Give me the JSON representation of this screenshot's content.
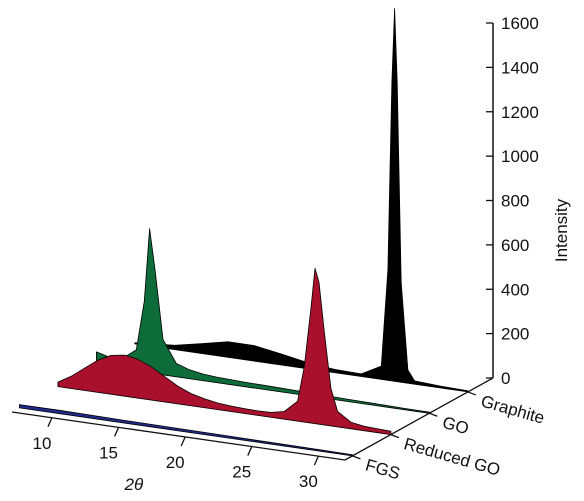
{
  "chart_data": {
    "type": "area",
    "view": "3d-waterfall",
    "x_axis": {
      "label": "2θ",
      "ticks": [
        10,
        15,
        20,
        25,
        30
      ],
      "range": [
        7,
        32
      ]
    },
    "y_axis": {
      "label": "Intensity",
      "ticks": [
        0,
        200,
        400,
        600,
        800,
        1000,
        1200,
        1400,
        1600
      ],
      "range": [
        0,
        1600
      ]
    },
    "depth_axis": {
      "categories": [
        "FGS",
        "Reduced GO",
        "GO",
        "Graphite"
      ]
    },
    "series": [
      {
        "name": "FGS",
        "color": "#1f2a8a",
        "x": [
          7,
          10,
          15,
          20,
          25,
          30,
          32
        ],
        "y": [
          15,
          15,
          12,
          10,
          8,
          6,
          5
        ]
      },
      {
        "name": "Reduced GO",
        "color": "#a8102c",
        "x": [
          7,
          8,
          9,
          10,
          11,
          12,
          13,
          14,
          15,
          16,
          17,
          18,
          19,
          20,
          21,
          22,
          23,
          24,
          25,
          25.5,
          26,
          26.3,
          26.6,
          27,
          27.5,
          28,
          29,
          30,
          32
        ],
        "y": [
          20,
          55,
          100,
          145,
          175,
          185,
          175,
          150,
          115,
          80,
          55,
          40,
          30,
          25,
          22,
          20,
          22,
          35,
          90,
          250,
          520,
          700,
          640,
          420,
          170,
          70,
          30,
          20,
          15
        ]
      },
      {
        "name": "GO",
        "color": "#0e6b3a",
        "x": [
          7,
          8,
          9,
          10,
          10.6,
          11,
          11.4,
          12,
          13,
          14,
          15,
          16,
          18,
          20,
          22,
          24,
          26,
          28,
          30,
          32
        ],
        "y": [
          60,
          45,
          50,
          95,
          320,
          650,
          470,
          160,
          60,
          40,
          30,
          25,
          20,
          18,
          15,
          12,
          10,
          8,
          6,
          5
        ]
      },
      {
        "name": "Graphite",
        "color": "#000000",
        "x": [
          7,
          10,
          12,
          14,
          16,
          18,
          20,
          22,
          24,
          25.5,
          26,
          26.3,
          26.5,
          26.7,
          27,
          27.5,
          28,
          30,
          32
        ],
        "y": [
          5,
          20,
          45,
          70,
          70,
          50,
          28,
          15,
          12,
          60,
          500,
          1350,
          1680,
          1350,
          450,
          60,
          15,
          8,
          5
        ]
      }
    ]
  }
}
